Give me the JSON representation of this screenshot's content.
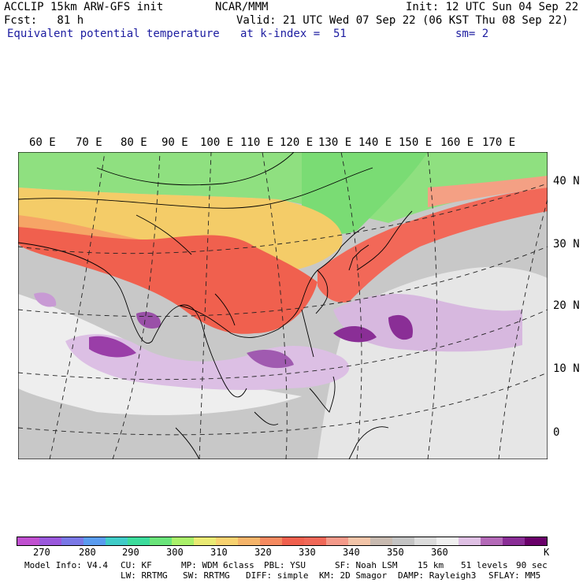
{
  "header": {
    "left1": "ACCLIP 15km ARW-GFS init",
    "center1": "NCAR/MMM",
    "right1": "Init: 12 UTC Sun 04 Sep 22",
    "left2": "Fcst:   81 h",
    "center2": "Valid: 21 UTC Wed 07 Sep 22 (06 KST Thu 08 Sep 22)",
    "field": "Equivalent potential temperature",
    "level": "at k-index =  51",
    "smooth": "sm= 2"
  },
  "map": {
    "lon_labels": [
      "60 E",
      "70 E",
      "80 E",
      "90 E",
      "100 E",
      "110 E",
      "120 E",
      "130 E",
      "140 E",
      "150 E",
      "160 E",
      "170 E"
    ],
    "lat_labels": [
      "40 N",
      "30 N",
      "20 N",
      "10 N",
      "0"
    ]
  },
  "colorbar": {
    "colors": [
      "#c050d0",
      "#9a58dc",
      "#7a78e6",
      "#5a9cf0",
      "#40ccc8",
      "#3cdc9c",
      "#6ae47a",
      "#aaf06a",
      "#eaea74",
      "#f8d270",
      "#f5b46a",
      "#f58a60",
      "#f0604e",
      "#f06858",
      "#f49a8a",
      "#f2c4a8",
      "#c8bab0",
      "#c4c4c4",
      "#dcdcdc",
      "#f0f0f0",
      "#dfc0e4",
      "#b46ab8",
      "#8a2e96",
      "#6a006a"
    ],
    "ticks": [
      "270",
      "280",
      "290",
      "300",
      "310",
      "320",
      "330",
      "340",
      "350",
      "360",
      "K"
    ]
  },
  "footer": {
    "line1_a": "Model Info: V4.4",
    "line1_b": "CU: KF",
    "line1_c": "MP: WDM 6class",
    "line1_d": "PBL: YSU",
    "line1_e": "SF: Noah LSM",
    "line1_f": "15 km",
    "line1_g": "51 levels",
    "line1_h": "90 sec",
    "line2_a": "LW: RRTMG",
    "line2_b": "SW: RRTMG",
    "line2_c": "DIFF: simple",
    "line2_d": "KM: 2D Smagor",
    "line2_e": "DAMP: Rayleigh3",
    "line2_f": "SFLAY: MM5"
  }
}
